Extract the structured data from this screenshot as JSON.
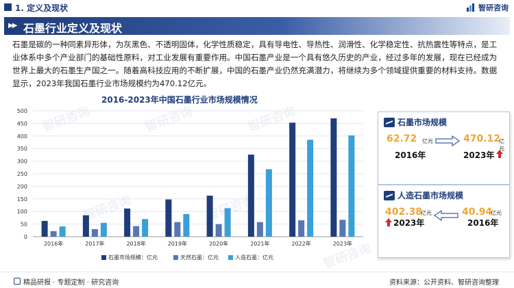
{
  "header": {
    "section": "1. 定义及现状",
    "logo": "智研咨询"
  },
  "title": "石墨行业定义及现状",
  "paragraph": "石墨是碳的一种同素异形体，为灰黑色、不透明固体，化学性质稳定，具有导电性、导热性、润滑性、化学稳定性、抗热震性等特点，是工业体系中多个产业部门的基础性原料，对工业发展有重要作用。中国石墨产业是一个具有悠久历史的产业，经过多年的发展，现在已经成为世界上最大的石墨生产国之一。随着高科技应用的不断扩展，中国的石墨产业仍然充满潜力，将继续为多个领域提供重要的材料支持。数据显示，2023年我国石墨行业市场规模约为470.12亿元。",
  "chart_data": {
    "type": "bar",
    "title": "2016-2023年中国石墨行业市场规模情况",
    "categories": [
      "2016年",
      "2017年",
      "2018年",
      "2019年",
      "2020年",
      "2021年",
      "2022年",
      "2023年"
    ],
    "series": [
      {
        "name": "石墨市场规模：亿元",
        "color": "#1f3d7a",
        "values": [
          62.72,
          85,
          112,
          148,
          163,
          326,
          453,
          470.12
        ]
      },
      {
        "name": "天然石墨：亿元",
        "color": "#5677b4",
        "values": [
          22,
          30,
          42,
          58,
          50,
          58,
          65,
          67
        ]
      },
      {
        "name": "人造石墨：亿元",
        "color": "#3aa0d8",
        "values": [
          40.94,
          55,
          70,
          90,
          113,
          268,
          385,
          402.38
        ]
      }
    ],
    "ylim": [
      0,
      500
    ],
    "yticks": [
      "0",
      "50",
      "100",
      "150",
      "200",
      "250",
      "300",
      "350",
      "400",
      "450",
      "500"
    ],
    "grid": true,
    "legend": "bottom"
  },
  "cards": {
    "graphite": {
      "title": "石墨市场规模",
      "from_value": "62.72",
      "from_unit": "亿元",
      "from_year": "2016年",
      "to_value": "470.12",
      "to_unit": "亿元",
      "to_year": "2023年"
    },
    "artificial": {
      "title": "人造石墨市场规模",
      "left_value": "402.38",
      "left_unit": "亿元",
      "left_year": "2023年",
      "right_value": "40.94",
      "right_unit": "亿元",
      "right_year": "2016年"
    }
  },
  "footer": {
    "left": "精品研报 · 专题定制 · 研究咨询",
    "right": "资料来源：公开资料、智研咨询整理"
  },
  "watermark": "智研咨询"
}
